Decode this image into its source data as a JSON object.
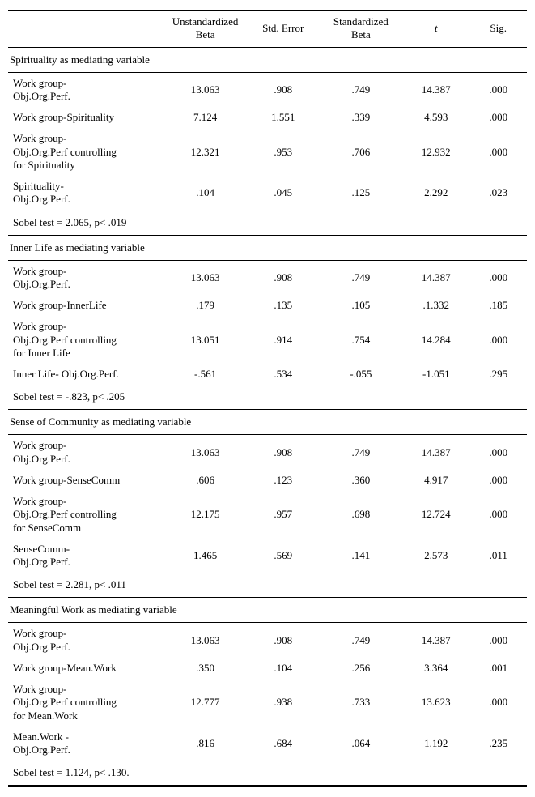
{
  "headers": {
    "c0": "",
    "c1": "Unstandardized\nBeta",
    "c2": "Std. Error",
    "c3": "Standardized\nBeta",
    "c4": "t",
    "c5": "Sig."
  },
  "sections": [
    {
      "title": "Spirituality as mediating variable",
      "rows": [
        {
          "label": "Work group-\nObj.Org.Perf.",
          "b": "13.063",
          "se": ".908",
          "sb": ".749",
          "t": "14.387",
          "sig": ".000"
        },
        {
          "label": "Work group-Spirituality",
          "b": "7.124",
          "se": "1.551",
          "sb": ".339",
          "t": "4.593",
          "sig": ".000"
        },
        {
          "label": "Work group-\nObj.Org.Perf controlling\nfor Spirituality",
          "b": "12.321",
          "se": ".953",
          "sb": ".706",
          "t": "12.932",
          "sig": ".000"
        },
        {
          "label": "Spirituality-\nObj.Org.Perf.",
          "b": ".104",
          "se": ".045",
          "sb": ".125",
          "t": "2.292",
          "sig": ".023"
        }
      ],
      "sobel": "Sobel test = 2.065, p< .019"
    },
    {
      "title": "Inner Life as mediating variable",
      "rows": [
        {
          "label": "Work group-\nObj.Org.Perf.",
          "b": "13.063",
          "se": ".908",
          "sb": ".749",
          "t": "14.387",
          "sig": ".000"
        },
        {
          "label": "Work group-InnerLife",
          "b": ".179",
          "se": ".135",
          "sb": ".105",
          "t": ".1.332",
          "sig": ".185"
        },
        {
          "label": "Work group-\nObj.Org.Perf controlling\nfor Inner Life",
          "b": "13.051",
          "se": ".914",
          "sb": ".754",
          "t": "14.284",
          "sig": ".000"
        },
        {
          "label": "Inner Life- Obj.Org.Perf.",
          "b": "-.561",
          "se": ".534",
          "sb": "-.055",
          "t": "-1.051",
          "sig": ".295"
        }
      ],
      "sobel": "Sobel test = -.823, p< .205"
    },
    {
      "title": "Sense of Community as mediating variable",
      "rows": [
        {
          "label": "Work group-\nObj.Org.Perf.",
          "b": "13.063",
          "se": ".908",
          "sb": ".749",
          "t": "14.387",
          "sig": ".000"
        },
        {
          "label": "Work group-SenseComm",
          "b": ".606",
          "se": ".123",
          "sb": ".360",
          "t": "4.917",
          "sig": ".000"
        },
        {
          "label": "Work group-\nObj.Org.Perf controlling\nfor SenseComm",
          "b": "12.175",
          "se": ".957",
          "sb": ".698",
          "t": "12.724",
          "sig": ".000"
        },
        {
          "label": "SenseComm-\nObj.Org.Perf.",
          "b": "1.465",
          "se": ".569",
          "sb": ".141",
          "t": "2.573",
          "sig": ".011"
        }
      ],
      "sobel": "Sobel test = 2.281, p< .011"
    },
    {
      "title": "Meaningful Work as mediating variable",
      "rows": [
        {
          "label": "Work group-\nObj.Org.Perf.",
          "b": "13.063",
          "se": ".908",
          "sb": ".749",
          "t": "14.387",
          "sig": ".000"
        },
        {
          "label": "Work group-Mean.Work",
          "b": ".350",
          "se": ".104",
          "sb": ".256",
          "t": "3.364",
          "sig": ".001"
        },
        {
          "label": "Work group-\nObj.Org.Perf controlling\nfor Mean.Work",
          "b": "12.777",
          "se": ".938",
          "sb": ".733",
          "t": "13.623",
          "sig": ".000"
        },
        {
          "label": "Mean.Work -\nObj.Org.Perf.",
          "b": ".816",
          "se": ".684",
          "sb": ".064",
          "t": "1.192",
          "sig": ".235"
        }
      ],
      "sobel": "Sobel test = 1.124, p< .130."
    }
  ]
}
